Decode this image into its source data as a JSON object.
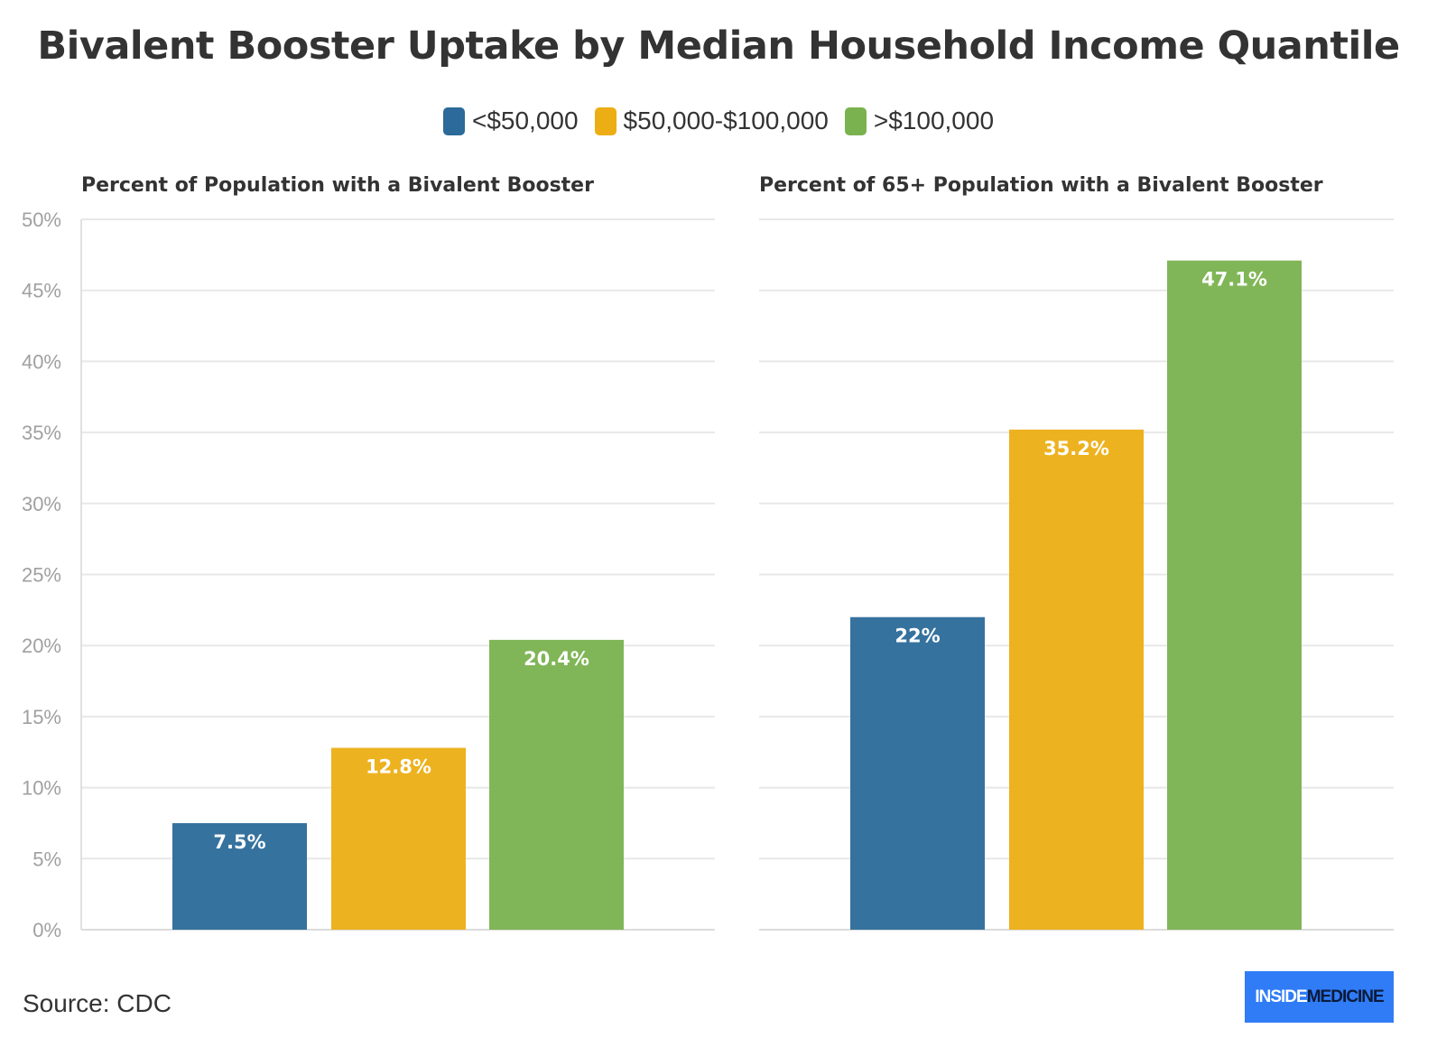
{
  "title": "Bivalent Booster Uptake by Median Household Income Quantile",
  "legend": [
    {
      "label": "<$50,000",
      "color": "#2b6a99"
    },
    {
      "label": "$50,000-$100,000",
      "color": "#ecae14"
    },
    {
      "label": ">$100,000",
      "color": "#7ab24f"
    }
  ],
  "footer": {
    "source": "Source: CDC",
    "brand_part1": "INSIDE",
    "brand_part2": "MEDICINE"
  },
  "chart_data": [
    {
      "type": "bar",
      "title": "Percent of Population with a Bivalent Booster",
      "categories": [
        "<$50,000",
        "$50,000-$100,000",
        ">$100,000"
      ],
      "values": [
        7.5,
        12.8,
        20.4
      ],
      "data_labels": [
        "7.5%",
        "12.8%",
        "20.4%"
      ],
      "colors": [
        "#2b6a99",
        "#ecae14",
        "#7ab24f"
      ],
      "ylim": [
        0,
        50
      ],
      "yticks": [
        "0%",
        "5%",
        "10%",
        "15%",
        "20%",
        "25%",
        "30%",
        "35%",
        "40%",
        "45%",
        "50%"
      ],
      "grid": true,
      "legend_position": "top-center"
    },
    {
      "type": "bar",
      "title": "Percent of 65+ Population with a Bivalent Booster",
      "categories": [
        "<$50,000",
        "$50,000-$100,000",
        ">$100,000"
      ],
      "values": [
        22,
        35.2,
        47.1
      ],
      "data_labels": [
        "22%",
        "35.2%",
        "47.1%"
      ],
      "colors": [
        "#2b6a99",
        "#ecae14",
        "#7ab24f"
      ],
      "ylim": [
        0,
        50
      ],
      "grid": true,
      "legend_position": "top-center"
    }
  ]
}
